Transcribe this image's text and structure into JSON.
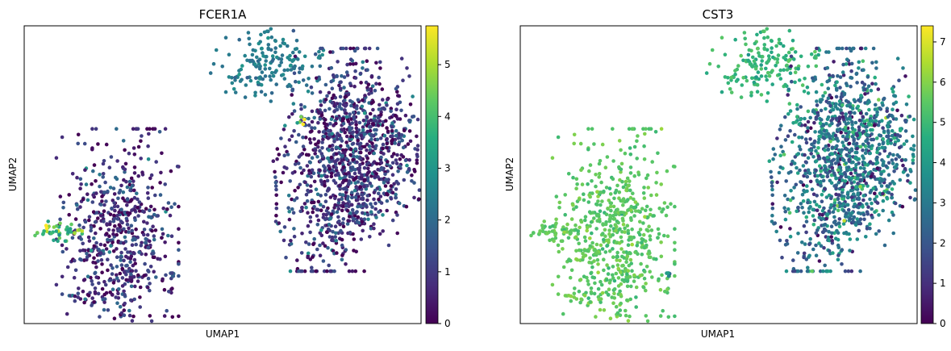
{
  "chart_data": [
    {
      "type": "scatter",
      "title": "FCER1A",
      "xlabel": "UMAP1",
      "ylabel": "UMAP2",
      "colormap": "viridis",
      "colorbar": {
        "min": 0,
        "max": 5.75,
        "ticks": [
          0,
          1,
          2,
          3,
          4,
          5
        ],
        "tick_labels": [
          "0",
          "1",
          "2",
          "3",
          "4",
          "5"
        ]
      },
      "grid": false,
      "legend": "none",
      "axes_ticks": false,
      "xlim": [
        0,
        100
      ],
      "ylim": [
        0,
        100
      ],
      "approx_point_count": 2640,
      "clusters": [
        {
          "id": "top-small",
          "center": [
            61.3,
            86.6
          ],
          "spread": [
            6.5,
            6.0
          ],
          "count": 170,
          "mean": 2.4,
          "sd": 0.3
        },
        {
          "id": "right-main",
          "center": [
            80.5,
            55.0
          ],
          "spread": [
            10.5,
            17.0
          ],
          "count": 1250,
          "mean": 0.9,
          "sd": 0.8
        },
        {
          "id": "left-main",
          "center": [
            23.5,
            28.0
          ],
          "spread": [
            7.0,
            17.0
          ],
          "count": 640,
          "mean": 0.8,
          "sd": 0.8
        },
        {
          "id": "left-arm",
          "center": [
            8.0,
            31.0
          ],
          "spread": [
            3.0,
            1.5
          ],
          "count": 45,
          "mean": 4.2,
          "sd": 0.7
        },
        {
          "id": "bridge",
          "center": [
            69.7,
            68.0
          ],
          "spread": [
            0.8,
            1.5
          ],
          "count": 6,
          "mean": 4.5,
          "sd": 0.8
        },
        {
          "id": "isolated",
          "center": [
            37.0,
            17.0
          ],
          "spread": [
            0.5,
            0.5
          ],
          "count": 5,
          "mean": 1.8,
          "sd": 0.5
        }
      ]
    },
    {
      "type": "scatter",
      "title": "CST3",
      "xlabel": "UMAP1",
      "ylabel": "UMAP2",
      "colormap": "viridis",
      "colorbar": {
        "min": 0,
        "max": 7.4,
        "ticks": [
          0,
          1,
          2,
          3,
          4,
          5,
          6,
          7
        ],
        "tick_labels": [
          "0",
          "1",
          "2",
          "3",
          "4",
          "5",
          "6",
          "7"
        ]
      },
      "grid": false,
      "legend": "none",
      "axes_ticks": false,
      "xlim": [
        0,
        100
      ],
      "ylim": [
        0,
        100
      ],
      "approx_point_count": 2640,
      "clusters": [
        {
          "id": "top-small",
          "center": [
            61.3,
            86.6
          ],
          "spread": [
            6.5,
            6.0
          ],
          "count": 170,
          "mean": 4.9,
          "sd": 0.4
        },
        {
          "id": "right-main",
          "center": [
            80.5,
            55.0
          ],
          "spread": [
            10.5,
            17.0
          ],
          "count": 1250,
          "mean": 2.8,
          "sd": 1.2
        },
        {
          "id": "left-main",
          "center": [
            23.5,
            28.0
          ],
          "spread": [
            7.0,
            17.0
          ],
          "count": 640,
          "mean": 5.5,
          "sd": 0.3
        },
        {
          "id": "left-arm",
          "center": [
            8.0,
            31.0
          ],
          "spread": [
            3.0,
            1.5
          ],
          "count": 45,
          "mean": 5.5,
          "sd": 0.3
        },
        {
          "id": "bridge",
          "center": [
            69.7,
            68.0
          ],
          "spread": [
            0.8,
            1.5
          ],
          "count": 6,
          "mean": 4.0,
          "sd": 0.5
        },
        {
          "id": "isolated",
          "center": [
            37.0,
            17.0
          ],
          "spread": [
            0.5,
            0.5
          ],
          "count": 5,
          "mean": 3.5,
          "sd": 1.0
        }
      ]
    }
  ]
}
